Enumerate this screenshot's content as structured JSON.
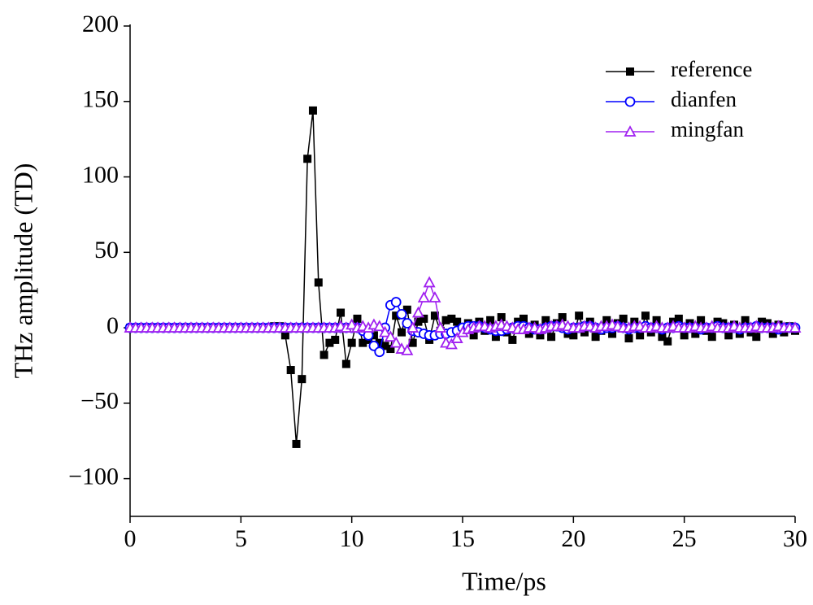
{
  "chart_data": {
    "type": "line",
    "xlabel": "Time/ps",
    "ylabel": "THz amplitude (TD)",
    "x": [
      0,
      0.25,
      0.5,
      0.75,
      1,
      1.25,
      1.5,
      1.75,
      2,
      2.25,
      2.5,
      2.75,
      3,
      3.25,
      3.5,
      3.75,
      4,
      4.25,
      4.5,
      4.75,
      5,
      5.25,
      5.5,
      5.75,
      6,
      6.25,
      6.5,
      6.75,
      7,
      7.25,
      7.5,
      7.75,
      8,
      8.25,
      8.5,
      8.75,
      9,
      9.25,
      9.5,
      9.75,
      10,
      10.25,
      10.5,
      10.75,
      11,
      11.25,
      11.5,
      11.75,
      12,
      12.25,
      12.5,
      12.75,
      13,
      13.25,
      13.5,
      13.75,
      14,
      14.25,
      14.5,
      14.75,
      15,
      15.25,
      15.5,
      15.75,
      16,
      16.25,
      16.5,
      16.75,
      17,
      17.25,
      17.5,
      17.75,
      18,
      18.25,
      18.5,
      18.75,
      19,
      19.25,
      19.5,
      19.75,
      20,
      20.25,
      20.5,
      20.75,
      21,
      21.25,
      21.5,
      21.75,
      22,
      22.25,
      22.5,
      22.75,
      23,
      23.25,
      23.5,
      23.75,
      24,
      24.25,
      24.5,
      24.75,
      25,
      25.25,
      25.5,
      25.75,
      26,
      26.25,
      26.5,
      26.75,
      27,
      27.25,
      27.5,
      27.75,
      28,
      28.25,
      28.5,
      28.75,
      29,
      29.25,
      29.5,
      29.75,
      30
    ],
    "series": [
      {
        "name": "reference",
        "color": "#000000",
        "marker": "square",
        "values": [
          0,
          0,
          0,
          0,
          0,
          0,
          0,
          0,
          0,
          0,
          0,
          0,
          0,
          0,
          0,
          0,
          0,
          0,
          0,
          0,
          0,
          0,
          0,
          0,
          0,
          0,
          1,
          1,
          -5,
          -28,
          -77,
          -34,
          112,
          144,
          30,
          -18,
          -10,
          -8,
          10,
          -24,
          -10,
          6,
          -10,
          -8,
          -5,
          -10,
          -12,
          -14,
          8,
          -3,
          12,
          -10,
          4,
          6,
          -8,
          8,
          -2,
          5,
          6,
          4,
          -3,
          3,
          -5,
          4,
          -2,
          5,
          -6,
          7,
          -3,
          -8,
          4,
          6,
          -4,
          2,
          -5,
          5,
          -6,
          3,
          7,
          -4,
          -5,
          8,
          -3,
          4,
          -6,
          -2,
          5,
          -4,
          3,
          6,
          -7,
          4,
          -5,
          8,
          -3,
          5,
          -6,
          -9,
          4,
          6,
          -5,
          3,
          -4,
          5,
          -2,
          -6,
          4,
          3,
          -5,
          2,
          -4,
          5,
          -3,
          -6,
          4,
          3,
          -4,
          2,
          -3,
          1,
          -2
        ]
      },
      {
        "name": "dianfen",
        "color": "#0000ff",
        "marker": "circle",
        "values": [
          0,
          0,
          0,
          0,
          0,
          0,
          0,
          0,
          0,
          0,
          0,
          0,
          0,
          0,
          0,
          0,
          0,
          0,
          0,
          0,
          0,
          0,
          0,
          0,
          0,
          0,
          0,
          0,
          0,
          0,
          0,
          0,
          0,
          0,
          0,
          0,
          0,
          0,
          0,
          0,
          0,
          0,
          -2,
          -5,
          -12,
          -16,
          0,
          15,
          17,
          9,
          3,
          -2,
          -3,
          -4,
          -5,
          -5,
          -4,
          -4,
          -3,
          -2,
          0,
          1,
          1,
          1,
          0,
          -1,
          -2,
          -2,
          -1,
          0,
          1,
          1,
          0,
          -1,
          -1,
          0,
          1,
          1,
          0,
          -1,
          0,
          0,
          1,
          1,
          0,
          -1,
          0,
          0,
          1,
          0,
          -1,
          0,
          0,
          1,
          0,
          0,
          -1,
          0,
          0,
          1,
          0,
          0,
          0,
          -1,
          0,
          0,
          1,
          0,
          0,
          0,
          -1,
          0,
          0,
          1,
          0,
          0,
          0,
          -1,
          0,
          0,
          0
        ]
      },
      {
        "name": "mingfan",
        "color": "#a020f0",
        "marker": "triangle",
        "values": [
          0,
          0,
          0,
          0,
          0,
          0,
          0,
          0,
          0,
          0,
          0,
          0,
          0,
          0,
          0,
          0,
          0,
          0,
          0,
          0,
          0,
          0,
          0,
          0,
          0,
          0,
          0,
          0,
          0,
          0,
          0,
          0,
          0,
          0,
          0,
          0,
          0,
          0,
          1,
          0,
          2,
          0,
          1,
          0,
          2,
          1,
          -3,
          -6,
          -10,
          -14,
          -15,
          0,
          10,
          20,
          30,
          20,
          0,
          -10,
          -11,
          -7,
          -3,
          -1,
          0,
          1,
          1,
          0,
          1,
          2,
          1,
          0,
          -1,
          -1,
          0,
          0,
          -1,
          0,
          1,
          1,
          2,
          1,
          0,
          0,
          1,
          1,
          0,
          1,
          1,
          2,
          1,
          0,
          0,
          1,
          1,
          0,
          0,
          1,
          0,
          0,
          1,
          0,
          0,
          0,
          1,
          0,
          0,
          1,
          0,
          0,
          0,
          1,
          0,
          0,
          0,
          1,
          0,
          0,
          0,
          1,
          0,
          0,
          0
        ]
      }
    ],
    "xlim": [
      0,
      30
    ],
    "xticks": [
      0,
      5,
      10,
      15,
      20,
      25,
      30
    ],
    "ylim": [
      -125,
      200
    ],
    "yticks": [
      {
        "value": -100,
        "label": "−100"
      },
      {
        "value": -50,
        "label": "−50"
      },
      0,
      50,
      100,
      150,
      200
    ],
    "legend": "upper right",
    "grid": false
  }
}
